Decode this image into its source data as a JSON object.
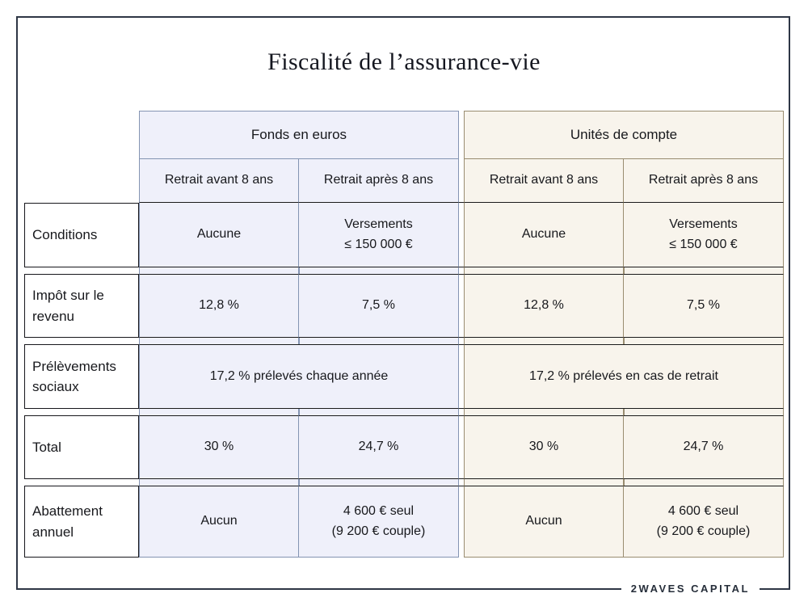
{
  "title": "Fiscalité de l’assurance-vie",
  "brand": "2WAVES CAPITAL",
  "colors": {
    "frame": "#2e3645",
    "separator_black": "#1b1b1b",
    "fonds_en_euros_border": "#8494b2",
    "fonds_en_euros_bg": "#eff0fa",
    "unites_de_compte_border": "#998c70",
    "unites_de_compte_bg": "#f8f4ec"
  },
  "table": {
    "groups": [
      {
        "label": "Fonds en euros",
        "sub": [
          "Retrait avant 8 ans",
          "Retrait après 8 ans"
        ]
      },
      {
        "label": "Unités de compte",
        "sub": [
          "Retrait avant 8 ans",
          "Retrait après 8 ans"
        ]
      }
    ],
    "rows": [
      {
        "label": "Conditions",
        "cells": [
          "Aucune",
          "Versements\n≤ 150 000 €",
          "Aucune",
          "Versements\n≤ 150 000 €"
        ]
      },
      {
        "label": "Impôt sur le revenu",
        "cells": [
          "12,8 %",
          "7,5 %",
          "12,8 %",
          "7,5 %"
        ]
      },
      {
        "label": "Prélèvements sociaux",
        "cells": [
          "17,2 % prélevés chaque année",
          "17,2 % prélevés en cas de retrait"
        ],
        "merged": true
      },
      {
        "label": "Total",
        "cells": [
          "30 %",
          "24,7 %",
          "30 %",
          "24,7 %"
        ]
      },
      {
        "label": "Abattement annuel",
        "cells": [
          "Aucun",
          "4 600 € seul\n(9 200 € couple)",
          "Aucun",
          "4 600 € seul\n(9 200 € couple)"
        ]
      }
    ]
  },
  "chart_data": {
    "type": "table",
    "title": "Fiscalité de l’assurance-vie",
    "column_groups": [
      "Fonds en euros",
      "Unités de compte"
    ],
    "columns": [
      "Fonds en euros – Retrait avant 8 ans",
      "Fonds en euros – Retrait après 8 ans",
      "Unités de compte – Retrait avant 8 ans",
      "Unités de compte – Retrait après 8 ans"
    ],
    "rows": [
      {
        "label": "Conditions",
        "values": [
          "Aucune",
          "Versements ≤ 150 000 €",
          "Aucune",
          "Versements ≤ 150 000 €"
        ]
      },
      {
        "label": "Impôt sur le revenu",
        "values": [
          "12,8 %",
          "7,5 %",
          "12,8 %",
          "7,5 %"
        ]
      },
      {
        "label": "Prélèvements sociaux",
        "values": [
          "17,2 % prélevés chaque année",
          "17,2 % prélevés chaque année",
          "17,2 % prélevés en cas de retrait",
          "17,2 % prélevés en cas de retrait"
        ],
        "merged_pairs": true
      },
      {
        "label": "Total",
        "values": [
          "30 %",
          "24,7 %",
          "30 %",
          "24,7 %"
        ]
      },
      {
        "label": "Abattement annuel",
        "values": [
          "Aucun",
          "4 600 € seul (9 200 € couple)",
          "Aucun",
          "4 600 € seul (9 200 € couple)"
        ]
      }
    ],
    "footer": "2WAVES CAPITAL"
  }
}
